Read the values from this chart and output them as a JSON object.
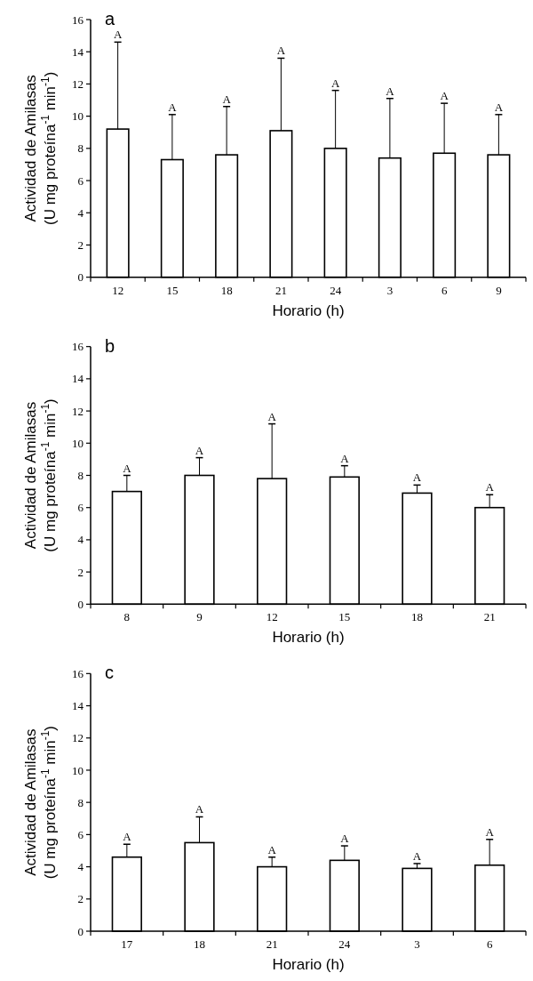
{
  "chart_data": [
    {
      "type": "bar",
      "title": "a",
      "xlabel": "Horario (h)",
      "ylabel": "Actividad de Amilasas\n(U mg proteína$^{-1}$ min$^{-1}$)",
      "categories": [
        "12",
        "15",
        "18",
        "21",
        "24",
        "3",
        "6",
        "9"
      ],
      "values": [
        9.2,
        7.3,
        7.6,
        9.1,
        8.0,
        7.4,
        7.7,
        7.6
      ],
      "errors": [
        [
          9.2,
          14.6
        ],
        [
          7.3,
          10.1
        ],
        [
          7.6,
          10.6
        ],
        [
          9.1,
          13.6
        ],
        [
          8.0,
          11.6
        ],
        [
          7.4,
          11.1
        ],
        [
          7.7,
          10.8
        ],
        [
          7.6,
          10.1
        ]
      ],
      "color": "#ffffff",
      "ylim": [
        0,
        16
      ],
      "yticks": [
        0,
        2,
        4,
        6,
        8,
        10,
        12,
        14,
        16
      ],
      "grid": false,
      "annotations": [
        {
          "text": "A",
          "x": "12",
          "y": 14.6
        },
        {
          "text": "A",
          "x": "15",
          "y": 10.1
        },
        {
          "text": "A",
          "x": "18",
          "y": 10.6
        },
        {
          "text": "A",
          "x": "21",
          "y": 13.6
        },
        {
          "text": "A",
          "x": "24",
          "y": 11.6
        },
        {
          "text": "A",
          "x": "3",
          "y": 11.1
        },
        {
          "text": "A",
          "x": "6",
          "y": 10.8
        },
        {
          "text": "A",
          "x": "9",
          "y": 10.1
        }
      ]
    },
    {
      "type": "bar",
      "title": "b",
      "xlabel": "Horario (h)",
      "ylabel": "Actividad de Amilasas\n(U mg proteína$^{-1}$ min$^{-1}$)",
      "categories": [
        "8",
        "9",
        "12",
        "15",
        "18",
        "21"
      ],
      "values": [
        7.0,
        8.0,
        7.8,
        7.9,
        6.9,
        6.0
      ],
      "errors": [
        [
          7.0,
          8.0
        ],
        [
          8.0,
          9.1
        ],
        [
          7.8,
          11.2
        ],
        [
          7.9,
          8.6
        ],
        [
          6.9,
          7.4
        ],
        [
          6.0,
          6.8
        ]
      ],
      "color": "#ffffff",
      "ylim": [
        0,
        16
      ],
      "yticks": [
        0,
        2,
        4,
        6,
        8,
        10,
        12,
        14,
        16
      ],
      "grid": false,
      "annotations": [
        {
          "text": "A",
          "x": "8",
          "y": 8.0
        },
        {
          "text": "A",
          "x": "9",
          "y": 9.1
        },
        {
          "text": "A",
          "x": "12",
          "y": 11.2
        },
        {
          "text": "A",
          "x": "15",
          "y": 8.6
        },
        {
          "text": "A",
          "x": "18",
          "y": 7.4
        },
        {
          "text": "A",
          "x": "21",
          "y": 6.8
        }
      ]
    },
    {
      "type": "bar",
      "title": "c",
      "xlabel": "Horario (h)",
      "ylabel": "Actividad de Amilasas\n(U mg proteína$^{-1}$ min$^{-1}$)",
      "categories": [
        "17",
        "18",
        "21",
        "24",
        "3",
        "6"
      ],
      "values": [
        4.6,
        5.5,
        4.0,
        4.4,
        3.9,
        4.1
      ],
      "errors": [
        [
          4.6,
          5.4
        ],
        [
          5.5,
          7.1
        ],
        [
          4.0,
          4.6
        ],
        [
          4.4,
          5.3
        ],
        [
          3.9,
          4.2
        ],
        [
          4.1,
          5.7
        ]
      ],
      "color": "#ffffff",
      "ylim": [
        0,
        16
      ],
      "yticks": [
        0,
        2,
        4,
        6,
        8,
        10,
        12,
        14,
        16
      ],
      "grid": false,
      "annotations": [
        {
          "text": "A",
          "x": "17",
          "y": 5.4
        },
        {
          "text": "A",
          "x": "18",
          "y": 7.1
        },
        {
          "text": "A",
          "x": "21",
          "y": 4.6
        },
        {
          "text": "A",
          "x": "24",
          "y": 5.3
        },
        {
          "text": "A",
          "x": "3",
          "y": 4.2
        },
        {
          "text": "A",
          "x": "6",
          "y": 5.7
        }
      ]
    }
  ]
}
